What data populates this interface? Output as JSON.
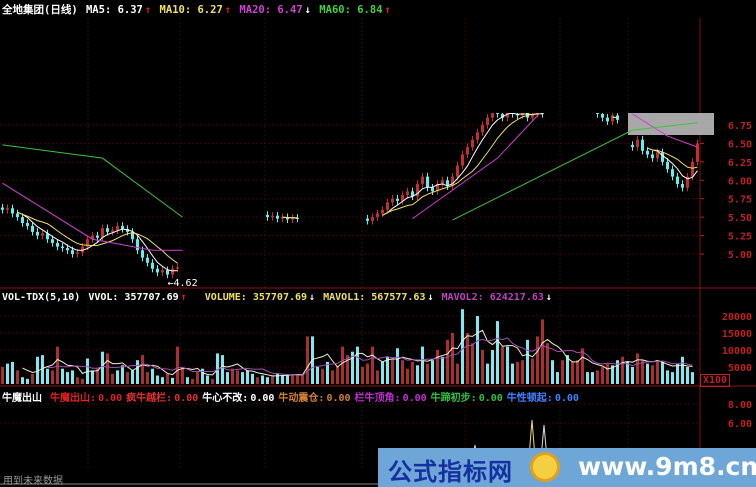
{
  "header": {
    "title": "全地集团(日线)",
    "ma5": "MA5: 6.37",
    "ma5_arrow": "↑",
    "ma10": "MA10: 6.27",
    "ma10_arrow": "↑",
    "ma20": "MA20: 6.47",
    "ma20_arrow": "↓",
    "ma60": "MA60: 6.84",
    "ma60_arrow": "↑"
  },
  "volume_header": {
    "name": "VOL-TDX(5,10)",
    "vvol": "VVOL: 357707.69",
    "vvol_arrow": "↑",
    "volume": "VOLUME: 357707.69",
    "volume_arrow": "↓",
    "mavol1": "MAVOL1: 567577.63",
    "mavol1_arrow": "↓",
    "mavol2": "MAVOL2: 624217.63",
    "mavol2_arrow": "↓",
    "unit": "X100"
  },
  "indicator_header": {
    "name": "牛魔出山",
    "items": [
      {
        "label": "牛魔出山:",
        "value": "0.00",
        "color": "#e02020"
      },
      {
        "label": "疯牛越栏:",
        "value": "0.00",
        "color": "#e03030"
      },
      {
        "label": "牛心不改:",
        "value": "0.00",
        "color": "#ffffff"
      },
      {
        "label": "牛动震仓:",
        "value": "0.00",
        "color": "#d08030"
      },
      {
        "label": "栏牛顶角:",
        "value": "0.00",
        "color": "#c030d0"
      },
      {
        "label": "牛蹄初步:",
        "value": "0.00",
        "color": "#30c040"
      },
      {
        "label": "牛性顿起:",
        "value": "0.00",
        "color": "#4080ff"
      }
    ]
  },
  "footer_note": "用到未来数据",
  "watermark": {
    "cn": "公式指标网",
    "url": "www.9m8.cn"
  },
  "colors": {
    "up": "#c03030",
    "down": "#60f0f0",
    "ma5": "#ffffff",
    "ma10": "#f0e060",
    "ma20": "#d040d0",
    "ma60": "#40c040",
    "axis": "#c02020"
  },
  "chart_data": [
    {
      "type": "candlestick",
      "price_ticks": [
        "6.75",
        "6.50",
        "6.25",
        "6.00",
        "5.75",
        "5.50",
        "5.25",
        "5.00"
      ],
      "low_label": "4.62",
      "segments": [
        {
          "start": 0,
          "close": [
            5.6,
            5.62,
            5.55,
            5.5,
            5.42,
            5.38,
            5.3,
            5.25,
            5.28,
            5.2,
            5.15,
            5.1,
            5.08,
            5.05,
            5.0,
            5.02,
            5.1,
            5.2,
            5.25,
            5.22,
            5.35,
            5.3,
            5.32,
            5.38,
            5.34,
            5.3,
            5.2,
            5.05,
            4.95,
            4.88,
            4.8,
            4.75,
            4.78,
            4.72,
            4.8,
            4.82
          ]
        },
        {
          "start": 53,
          "close": [
            5.5,
            5.52,
            5.48,
            5.5,
            5.47,
            5.49,
            5.48
          ]
        },
        {
          "start": 73,
          "close": [
            5.45,
            5.5,
            5.55,
            5.6,
            5.7,
            5.75,
            5.72,
            5.8,
            5.85,
            5.78,
            5.95,
            6.05,
            5.9,
            5.85,
            5.95,
            6.0,
            5.92,
            6.05,
            6.2,
            6.35,
            6.45,
            6.55,
            6.65,
            6.75,
            6.85,
            6.95,
            6.9,
            6.85,
            6.95,
            6.9,
            6.88,
            6.92,
            6.85,
            6.9,
            6.95,
            6.9
          ]
        },
        {
          "start": 119,
          "close": [
            6.9,
            6.85,
            6.8,
            6.88,
            6.82
          ]
        },
        {
          "start": 126,
          "close": [
            6.45,
            6.55,
            6.4,
            6.35,
            6.3,
            6.38,
            6.25,
            6.15,
            6.05,
            5.95,
            5.9,
            6.05,
            6.25,
            6.5
          ]
        }
      ],
      "ma20": [
        [
          [
            0,
            5.96
          ],
          [
            18,
            5.2
          ],
          [
            30,
            5.05
          ],
          [
            36,
            5.05
          ]
        ],
        [
          [
            82,
            5.48
          ],
          [
            99,
            6.3
          ],
          [
            108,
            6.95
          ]
        ],
        [
          [
            126,
            6.9
          ],
          [
            133,
            6.6
          ],
          [
            139,
            6.45
          ]
        ]
      ],
      "ma60": [
        [
          [
            0,
            6.48
          ],
          [
            20,
            6.3
          ],
          [
            36,
            5.5
          ]
        ],
        [
          [
            90,
            5.46
          ],
          [
            126,
            6.68
          ],
          [
            139,
            6.78
          ]
        ]
      ]
    },
    {
      "type": "bar",
      "volume_ticks": [
        "20000",
        "15000",
        "10000",
        "5000"
      ],
      "volume": [
        5000,
        6000,
        6500,
        4000,
        2000,
        1500,
        3000,
        8000,
        8500,
        4500,
        4000,
        11000,
        4500,
        3500,
        4000,
        2000,
        1500,
        7500,
        4000,
        4500,
        9500,
        9000,
        3000,
        4000,
        5500,
        3500,
        4000,
        7000,
        8500,
        3500,
        4500,
        2500,
        2000,
        3000,
        1800,
        11000,
        5000,
        2000,
        1500,
        3500,
        4500,
        2500,
        1500,
        9000,
        8500,
        3500,
        4500,
        4000,
        3500,
        4000,
        3000,
        2000,
        2500,
        2000,
        2500,
        3000,
        2500,
        2800,
        2800,
        2600,
        2700,
        14000,
        14000,
        5000,
        4500,
        6500,
        4000,
        5000,
        11000,
        8500,
        9500,
        11000,
        5000,
        6000,
        11000,
        4000,
        6500,
        8000,
        7500,
        10500,
        7000,
        4500,
        6500,
        5500,
        11000,
        6000,
        7000,
        10000,
        8000,
        13000,
        15000,
        6000,
        22000,
        15000,
        12000,
        20000,
        10000,
        6000,
        10000,
        18500,
        11000,
        11000,
        6000,
        6500,
        7000,
        13000,
        7500,
        14000,
        19000,
        12000,
        7000,
        3500,
        7000,
        8500,
        6500,
        7000,
        10500,
        3500,
        3500,
        4000,
        5000,
        6000,
        5500,
        7000,
        8000,
        6500,
        5000,
        9000,
        7000,
        6000,
        5500,
        7000,
        6500,
        4000,
        3500,
        6000,
        8000,
        5000,
        3500
      ],
      "direction": "uddudduddduuddduudduduuddudduuddduduuduudduddduudddudduddduuuudduduuuudduuuudduduuuddududuuuduududddudduuduuuudduduuudduuuddudduuduuddd"
    },
    {
      "type": "line",
      "indicator_ticks": [
        "8.00",
        "6.00"
      ]
    }
  ]
}
